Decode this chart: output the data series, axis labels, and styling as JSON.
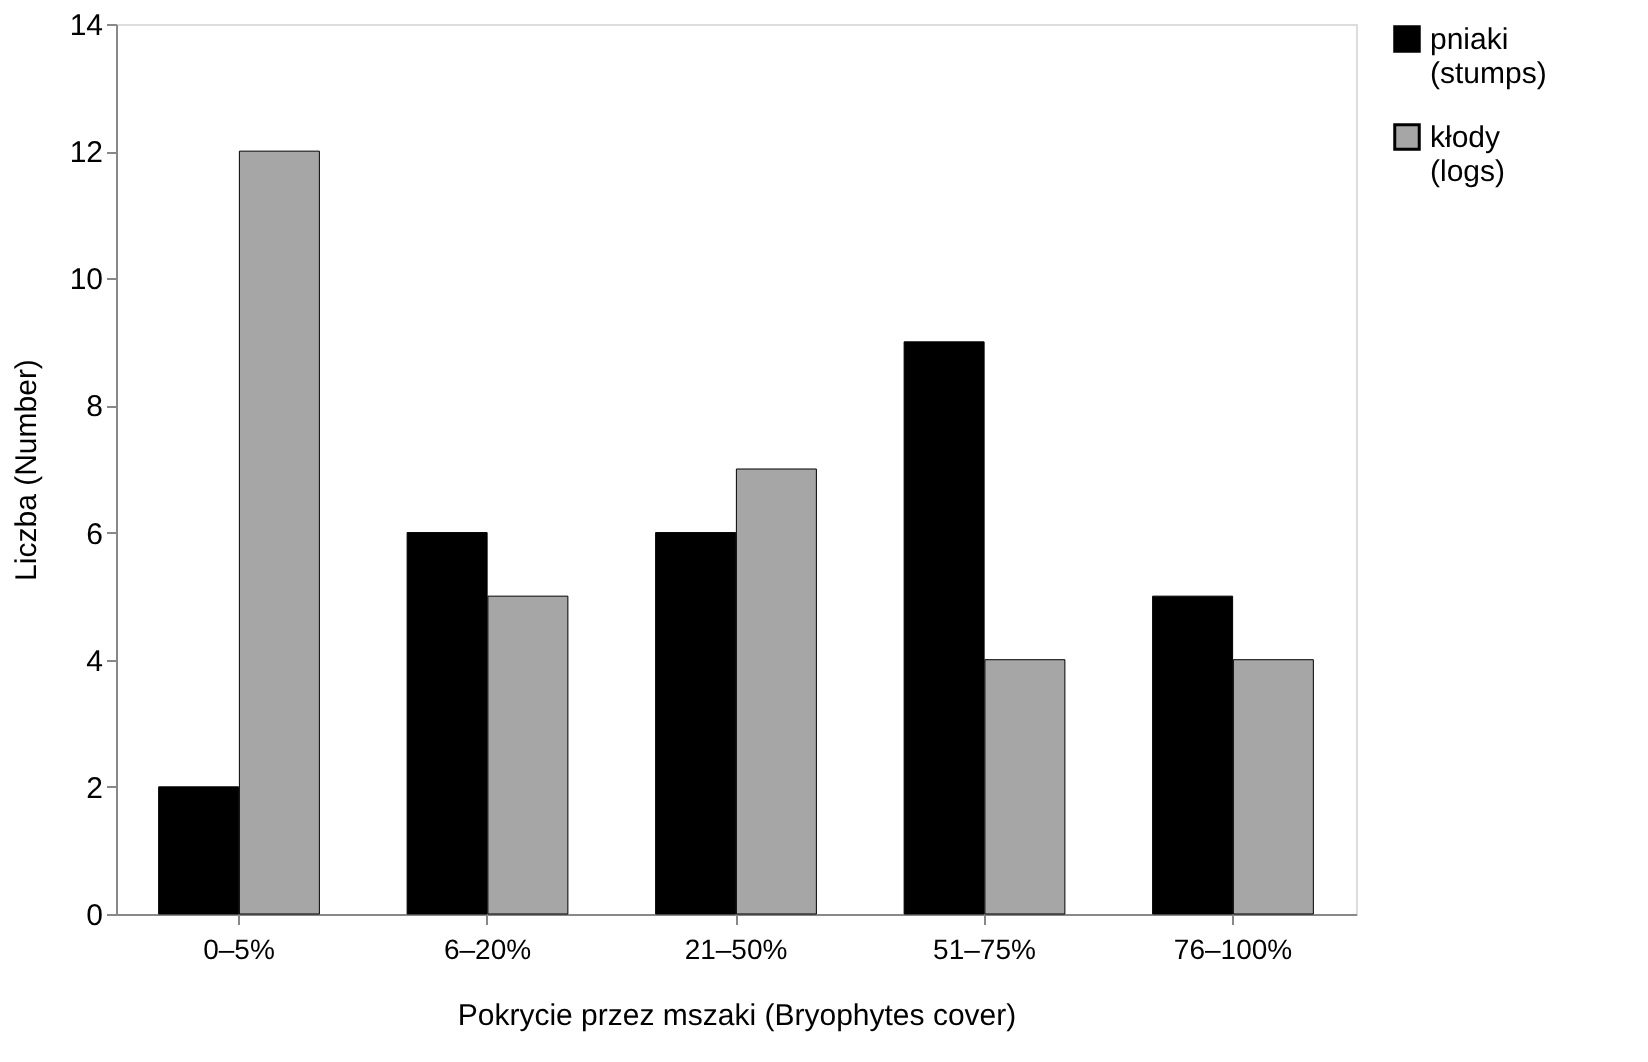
{
  "chart_data": {
    "type": "bar",
    "xlabel": "Pokrycie przez mszaki (Bryophytes cover)",
    "ylabel": "Liczba (Number)",
    "categories": [
      "0–5%",
      "6–20%",
      "21–50%",
      "51–75%",
      "76–100%"
    ],
    "series": [
      {
        "name": "pniaki (stumps)",
        "color": "#000000",
        "values": [
          2,
          6,
          6,
          9,
          5
        ]
      },
      {
        "name": "kłody (logs)",
        "color": "#a6a6a6",
        "values": [
          12,
          5,
          7,
          4,
          4
        ]
      }
    ],
    "ylim": [
      0,
      14
    ],
    "yticks": [
      0,
      2,
      4,
      6,
      8,
      10,
      12,
      14
    ],
    "grid": false,
    "legend": "right"
  }
}
